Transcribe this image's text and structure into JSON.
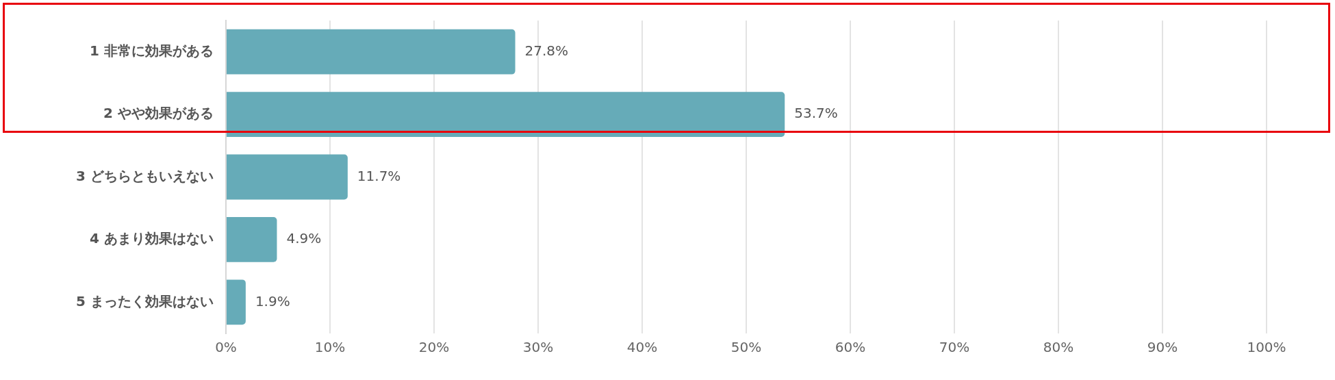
{
  "chart_data": {
    "type": "bar",
    "orientation": "horizontal",
    "categories": [
      "1 非常に効果がある",
      "2 やや効果がある",
      "3 どちらともいえない",
      "4 あまり効果はない",
      "5 まったく効果はない"
    ],
    "values": [
      27.8,
      53.7,
      11.7,
      4.9,
      1.9
    ],
    "value_labels": [
      "27.8%",
      "53.7%",
      "11.7%",
      "4.9%",
      "1.9%"
    ],
    "color": "#66abb8",
    "xlim": [
      0,
      100
    ],
    "xticks": [
      {
        "value": 0,
        "label": "0%"
      },
      {
        "value": 10,
        "label": "10%"
      },
      {
        "value": 20,
        "label": "20%"
      },
      {
        "value": 30,
        "label": "30%"
      },
      {
        "value": 40,
        "label": "40%"
      },
      {
        "value": 50,
        "label": "50%"
      },
      {
        "value": 60,
        "label": "60%"
      },
      {
        "value": 70,
        "label": "70%"
      },
      {
        "value": 80,
        "label": "80%"
      },
      {
        "value": 90,
        "label": "90%"
      },
      {
        "value": 100,
        "label": "100%"
      }
    ],
    "grid": "x",
    "legend": false
  }
}
